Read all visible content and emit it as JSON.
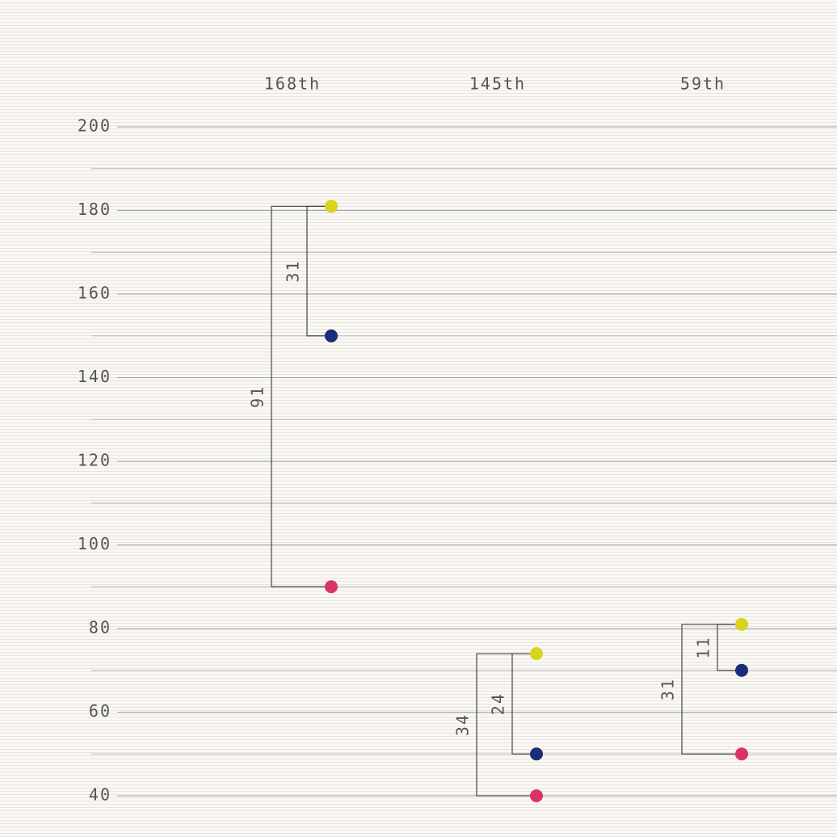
{
  "chart_data": {
    "type": "bracket-dot",
    "categories": [
      "168th",
      "145th",
      "59th"
    ],
    "series": [
      {
        "color": "#d6d41e",
        "values": [
          181,
          74,
          81
        ]
      },
      {
        "color": "#1b2c78",
        "values": [
          150,
          50,
          70
        ]
      },
      {
        "color": "#d9336a",
        "values": [
          90,
          40,
          50
        ]
      }
    ],
    "gaps": [
      [
        31,
        91
      ],
      [
        24,
        34
      ],
      [
        11,
        31
      ]
    ],
    "ylim": [
      40,
      200
    ],
    "yticks": [
      40,
      60,
      80,
      100,
      120,
      140,
      160,
      180,
      200
    ],
    "minor_yticks": [
      50,
      70,
      90,
      110,
      130,
      150,
      170,
      190
    ],
    "grid": true
  }
}
